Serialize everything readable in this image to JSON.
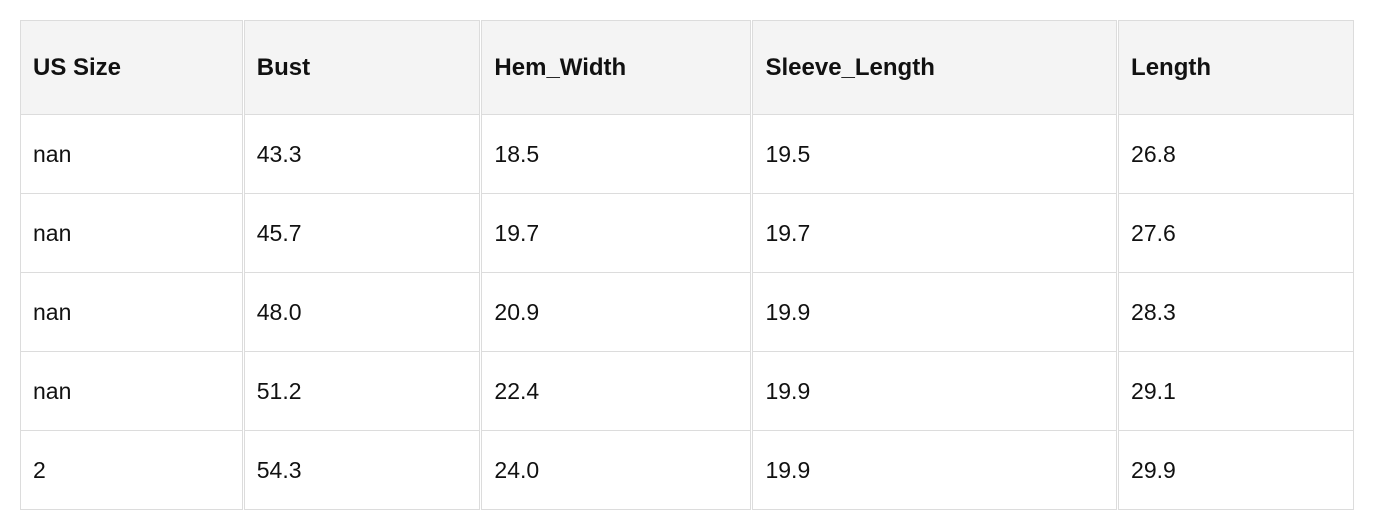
{
  "table": {
    "headers": [
      "US Size",
      "Bust",
      "Hem_Width",
      "Sleeve_Length",
      "Length"
    ],
    "rows": [
      [
        "nan",
        "43.3",
        "18.5",
        "19.5",
        "26.8"
      ],
      [
        "nan",
        "45.7",
        "19.7",
        "19.7",
        "27.6"
      ],
      [
        "nan",
        "48.0",
        "20.9",
        "19.9",
        "28.3"
      ],
      [
        "nan",
        "51.2",
        "22.4",
        "19.9",
        "29.1"
      ],
      [
        "2",
        "54.3",
        "24.0",
        "19.9",
        "29.9"
      ]
    ]
  }
}
